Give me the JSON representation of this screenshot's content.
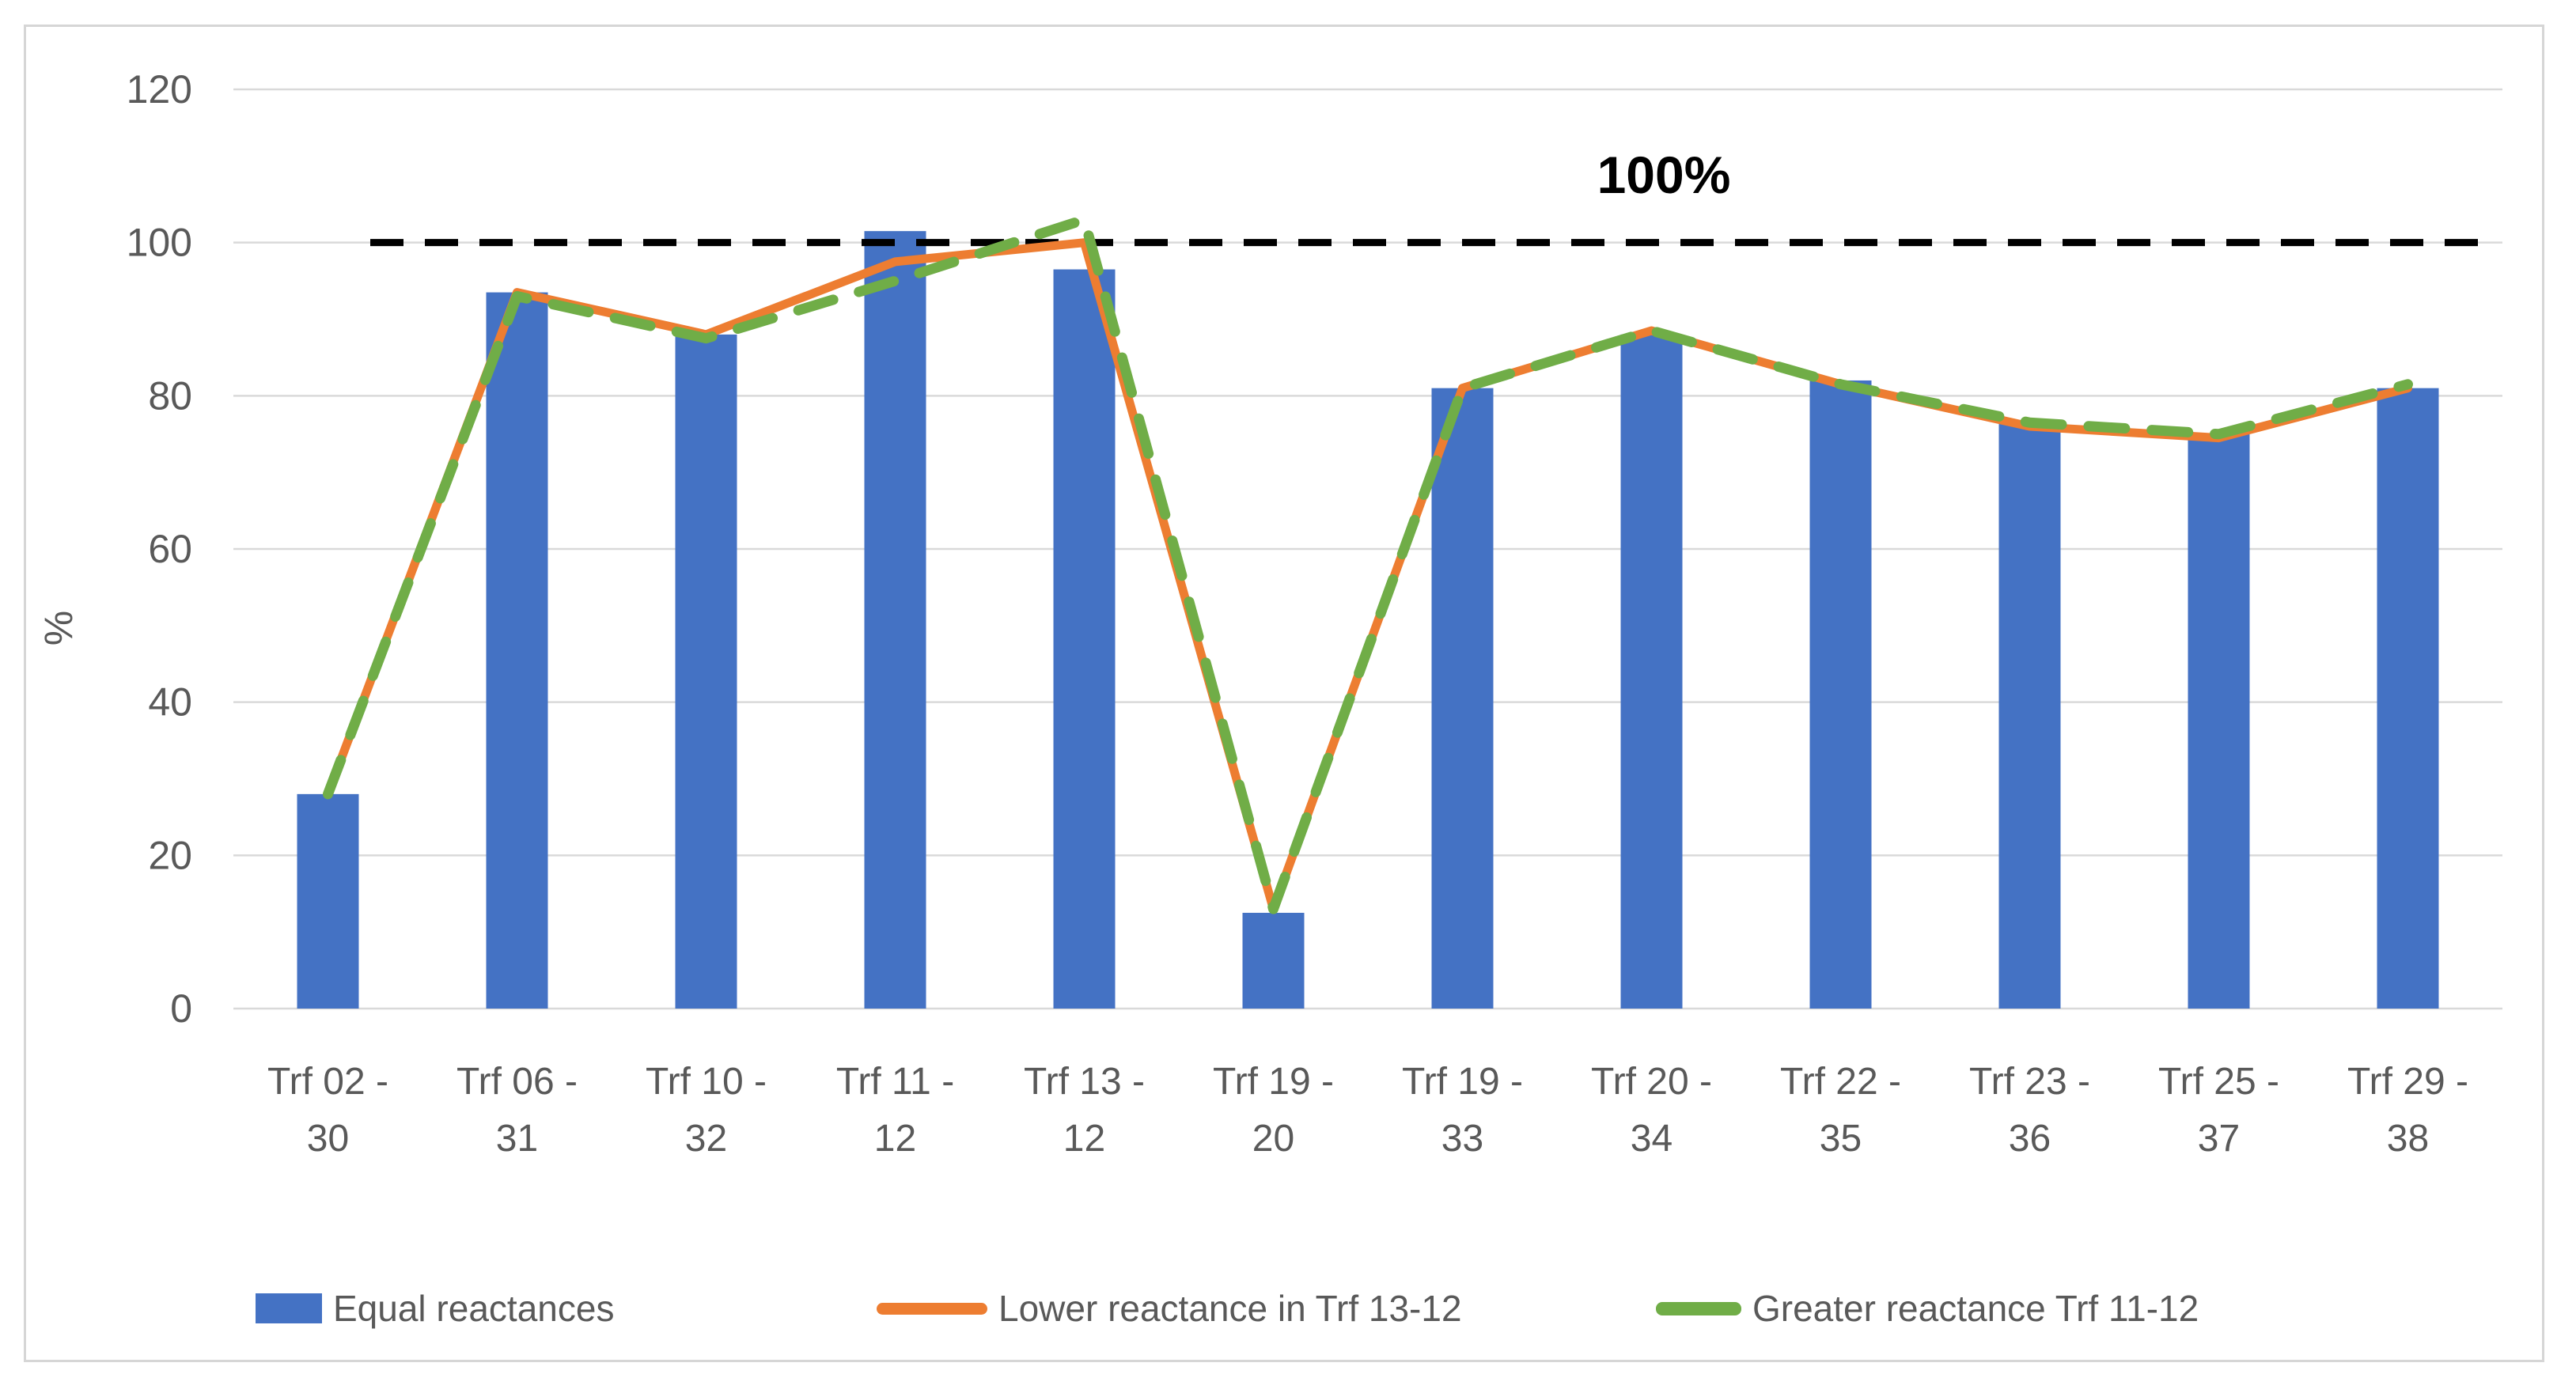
{
  "figure": {
    "background": "#FFFFFF",
    "border_color": "#D6D6D6"
  },
  "chart_data": {
    "type": "bar",
    "subtype": "bar-with-line-overlays",
    "categories": [
      "Trf 02 - 30",
      "Trf 06 - 31",
      "Trf 10 - 32",
      "Trf 11 - 12",
      "Trf 13 - 12",
      "Trf 19 - 20",
      "Trf 19 - 33",
      "Trf 20 - 34",
      "Trf 22 - 35",
      "Trf 23 - 36",
      "Trf 25 - 37",
      "Trf 29 - 38"
    ],
    "series": [
      {
        "name": "Equal reactances",
        "type": "bar",
        "color": "#4472C4",
        "values": [
          28,
          93.5,
          88,
          101.5,
          96.5,
          12.5,
          81,
          88,
          82,
          76.5,
          75,
          81
        ]
      },
      {
        "name": "Lower reactance in Trf 13-12",
        "type": "line",
        "style": "solid",
        "color": "#ED7D31",
        "values": [
          28,
          93.5,
          88,
          97.5,
          100,
          13,
          81,
          88.5,
          81.5,
          76,
          74.5,
          81
        ]
      },
      {
        "name": "Greater reactance Trf 11-12",
        "type": "line",
        "style": "dashed",
        "color": "#70AD47",
        "values": [
          28,
          93,
          87.5,
          95,
          103,
          13,
          81,
          88.5,
          81.5,
          76.5,
          75,
          81.5
        ]
      }
    ],
    "title": "",
    "xlabel": "",
    "ylabel": "%",
    "ylim": [
      0,
      120
    ],
    "yticks": [
      0,
      20,
      40,
      60,
      80,
      100,
      120
    ],
    "grid": true,
    "legend_position": "bottom",
    "reference_line": {
      "value": 100,
      "label": "100%",
      "color": "#000000",
      "style": "dashed"
    }
  },
  "colors": {
    "gridline": "#D9D9D9",
    "axis_text": "#595959",
    "annotation_text": "#000000"
  }
}
